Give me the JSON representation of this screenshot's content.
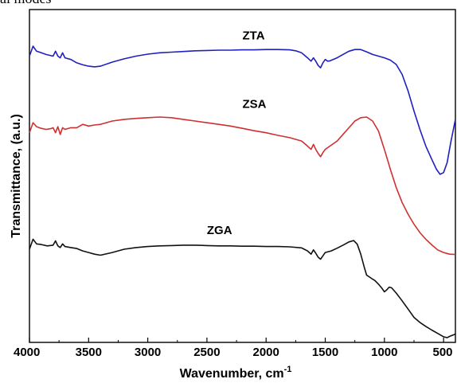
{
  "caption_fragment": "al modes",
  "chart_data": {
    "type": "line",
    "title": "",
    "xlabel": "Wavenumber, cm",
    "xlabel_superscript": "-1",
    "ylabel": "Transmittance, (a.u.)",
    "xlim": [
      4000,
      400
    ],
    "x_reversed": true,
    "xticks": [
      4000,
      3500,
      3000,
      2500,
      2000,
      1500,
      1000,
      500
    ],
    "y_ticks_shown": false,
    "grid": false,
    "ylim": [
      0,
      100
    ],
    "series": [
      {
        "name": "ZTA",
        "color": "#2020c0",
        "points": [
          [
            4000,
            86
          ],
          [
            3970,
            89
          ],
          [
            3940,
            87.5
          ],
          [
            3900,
            87
          ],
          [
            3860,
            86.5
          ],
          [
            3800,
            86
          ],
          [
            3780,
            87.5
          ],
          [
            3760,
            86
          ],
          [
            3740,
            85.5
          ],
          [
            3720,
            87
          ],
          [
            3700,
            85.5
          ],
          [
            3650,
            85
          ],
          [
            3600,
            84
          ],
          [
            3550,
            83.4
          ],
          [
            3500,
            83
          ],
          [
            3450,
            82.8
          ],
          [
            3400,
            83
          ],
          [
            3300,
            84.2
          ],
          [
            3200,
            85.2
          ],
          [
            3100,
            86
          ],
          [
            3000,
            86.6
          ],
          [
            2900,
            87
          ],
          [
            2800,
            87.2
          ],
          [
            2700,
            87.4
          ],
          [
            2600,
            87.6
          ],
          [
            2500,
            87.7
          ],
          [
            2400,
            87.8
          ],
          [
            2300,
            87.8
          ],
          [
            2200,
            87.9
          ],
          [
            2100,
            87.9
          ],
          [
            2000,
            88
          ],
          [
            1900,
            88
          ],
          [
            1800,
            87.9
          ],
          [
            1750,
            87.6
          ],
          [
            1700,
            87
          ],
          [
            1650,
            85.5
          ],
          [
            1620,
            84.5
          ],
          [
            1600,
            85.5
          ],
          [
            1580,
            84.5
          ],
          [
            1560,
            83.2
          ],
          [
            1540,
            82.5
          ],
          [
            1520,
            84
          ],
          [
            1500,
            85
          ],
          [
            1480,
            84.5
          ],
          [
            1460,
            84.6
          ],
          [
            1400,
            85.5
          ],
          [
            1350,
            86.5
          ],
          [
            1300,
            87.5
          ],
          [
            1250,
            88
          ],
          [
            1200,
            88
          ],
          [
            1150,
            87.3
          ],
          [
            1100,
            86.5
          ],
          [
            1050,
            86
          ],
          [
            1000,
            85.5
          ],
          [
            950,
            84.8
          ],
          [
            900,
            83.5
          ],
          [
            850,
            80.5
          ],
          [
            800,
            75.5
          ],
          [
            750,
            69.5
          ],
          [
            700,
            64
          ],
          [
            650,
            59
          ],
          [
            600,
            55
          ],
          [
            560,
            52
          ],
          [
            530,
            50.5
          ],
          [
            500,
            51
          ],
          [
            470,
            54
          ],
          [
            440,
            60
          ],
          [
            400,
            67
          ]
        ]
      },
      {
        "name": "ZSA",
        "color": "#d03030",
        "points": [
          [
            4000,
            63
          ],
          [
            3970,
            66
          ],
          [
            3940,
            64.8
          ],
          [
            3900,
            64.3
          ],
          [
            3860,
            64
          ],
          [
            3820,
            64.2
          ],
          [
            3800,
            64.5
          ],
          [
            3780,
            63
          ],
          [
            3760,
            64.8
          ],
          [
            3740,
            62.5
          ],
          [
            3720,
            64.5
          ],
          [
            3700,
            64
          ],
          [
            3650,
            64.5
          ],
          [
            3600,
            64.5
          ],
          [
            3550,
            65.5
          ],
          [
            3500,
            65
          ],
          [
            3450,
            65.3
          ],
          [
            3400,
            65.5
          ],
          [
            3300,
            66.5
          ],
          [
            3200,
            67
          ],
          [
            3100,
            67.3
          ],
          [
            3000,
            67.5
          ],
          [
            2900,
            67.7
          ],
          [
            2800,
            67.5
          ],
          [
            2700,
            67
          ],
          [
            2600,
            66.5
          ],
          [
            2500,
            66
          ],
          [
            2400,
            65.5
          ],
          [
            2300,
            65
          ],
          [
            2200,
            64.3
          ],
          [
            2100,
            63.6
          ],
          [
            2000,
            63
          ],
          [
            1900,
            62.2
          ],
          [
            1800,
            61.5
          ],
          [
            1700,
            60.5
          ],
          [
            1650,
            59
          ],
          [
            1620,
            58
          ],
          [
            1600,
            59.5
          ],
          [
            1580,
            58
          ],
          [
            1560,
            56.8
          ],
          [
            1540,
            55.8
          ],
          [
            1520,
            57
          ],
          [
            1500,
            58
          ],
          [
            1460,
            59
          ],
          [
            1400,
            60.5
          ],
          [
            1350,
            62.5
          ],
          [
            1300,
            64.5
          ],
          [
            1250,
            66.5
          ],
          [
            1200,
            67.5
          ],
          [
            1150,
            67.7
          ],
          [
            1100,
            66.5
          ],
          [
            1050,
            63.5
          ],
          [
            1000,
            58
          ],
          [
            950,
            52
          ],
          [
            900,
            46.5
          ],
          [
            850,
            42
          ],
          [
            800,
            38.5
          ],
          [
            750,
            35.5
          ],
          [
            700,
            33
          ],
          [
            650,
            31
          ],
          [
            600,
            29.3
          ],
          [
            550,
            27.8
          ],
          [
            500,
            27
          ],
          [
            450,
            26.5
          ],
          [
            400,
            26.4
          ]
        ]
      },
      {
        "name": "ZGA",
        "color": "#111111",
        "points": [
          [
            4000,
            28
          ],
          [
            3970,
            31
          ],
          [
            3940,
            29.6
          ],
          [
            3900,
            29.4
          ],
          [
            3850,
            29
          ],
          [
            3800,
            29.2
          ],
          [
            3780,
            30.5
          ],
          [
            3760,
            29
          ],
          [
            3740,
            28.5
          ],
          [
            3720,
            29.6
          ],
          [
            3700,
            28.8
          ],
          [
            3650,
            28.5
          ],
          [
            3600,
            28.2
          ],
          [
            3550,
            27.5
          ],
          [
            3500,
            27
          ],
          [
            3450,
            26.5
          ],
          [
            3400,
            26.2
          ],
          [
            3300,
            27
          ],
          [
            3200,
            28
          ],
          [
            3100,
            28.5
          ],
          [
            3000,
            28.8
          ],
          [
            2900,
            29
          ],
          [
            2800,
            29.1
          ],
          [
            2700,
            29.2
          ],
          [
            2600,
            29.2
          ],
          [
            2500,
            29.1
          ],
          [
            2400,
            29
          ],
          [
            2300,
            29
          ],
          [
            2200,
            28.9
          ],
          [
            2100,
            28.9
          ],
          [
            2000,
            28.8
          ],
          [
            1900,
            28.8
          ],
          [
            1800,
            28.7
          ],
          [
            1700,
            28.4
          ],
          [
            1650,
            27.5
          ],
          [
            1620,
            26.5
          ],
          [
            1600,
            27.8
          ],
          [
            1580,
            26.8
          ],
          [
            1560,
            25.6
          ],
          [
            1540,
            25
          ],
          [
            1520,
            26
          ],
          [
            1500,
            27
          ],
          [
            1450,
            27.5
          ],
          [
            1400,
            28.3
          ],
          [
            1350,
            29.2
          ],
          [
            1300,
            30.2
          ],
          [
            1260,
            30.6
          ],
          [
            1230,
            29.5
          ],
          [
            1200,
            26.5
          ],
          [
            1170,
            22.5
          ],
          [
            1150,
            20.2
          ],
          [
            1120,
            19.5
          ],
          [
            1100,
            19
          ],
          [
            1080,
            18.6
          ],
          [
            1050,
            17.5
          ],
          [
            1020,
            16.2
          ],
          [
            1000,
            15.2
          ],
          [
            980,
            15.8
          ],
          [
            960,
            16.6
          ],
          [
            940,
            16.4
          ],
          [
            900,
            14.8
          ],
          [
            850,
            12.5
          ],
          [
            800,
            10
          ],
          [
            750,
            7.5
          ],
          [
            700,
            6
          ],
          [
            650,
            4.8
          ],
          [
            600,
            3.7
          ],
          [
            550,
            2.7
          ],
          [
            500,
            1.7
          ],
          [
            470,
            1.4
          ],
          [
            450,
            1.8
          ],
          [
            420,
            2.2
          ],
          [
            400,
            2.5
          ]
        ]
      }
    ],
    "annotations": [
      {
        "text": "ZTA",
        "x": 2200,
        "y": 91
      },
      {
        "text": "ZSA",
        "x": 2200,
        "y": 70.5
      },
      {
        "text": "ZGA",
        "x": 2500,
        "y": 32.5
      }
    ]
  }
}
